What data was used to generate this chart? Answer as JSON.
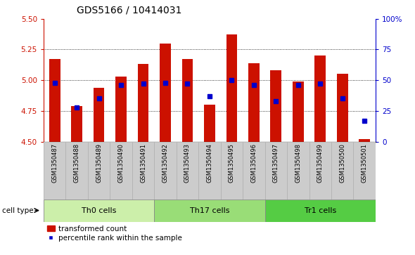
{
  "title": "GDS5166 / 10414031",
  "samples": [
    "GSM1350487",
    "GSM1350488",
    "GSM1350489",
    "GSM1350490",
    "GSM1350491",
    "GSM1350492",
    "GSM1350493",
    "GSM1350494",
    "GSM1350495",
    "GSM1350496",
    "GSM1350497",
    "GSM1350498",
    "GSM1350499",
    "GSM1350500",
    "GSM1350501"
  ],
  "transformed_count": [
    5.17,
    4.79,
    4.94,
    5.03,
    5.13,
    5.3,
    5.17,
    4.8,
    5.37,
    5.14,
    5.08,
    4.99,
    5.2,
    5.05,
    4.52
  ],
  "percentile_rank": [
    48,
    28,
    35,
    46,
    47,
    48,
    47,
    37,
    50,
    46,
    33,
    46,
    47,
    35,
    17
  ],
  "ymin": 4.5,
  "ymax": 5.5,
  "y_ticks": [
    4.5,
    4.75,
    5.0,
    5.25,
    5.5
  ],
  "right_axis_ticks": [
    0,
    25,
    50,
    75,
    100
  ],
  "cell_groups": [
    {
      "label": "Th0 cells",
      "start": 0,
      "end": 5,
      "color": "#ccefaa"
    },
    {
      "label": "Th17 cells",
      "start": 5,
      "end": 10,
      "color": "#99dd77"
    },
    {
      "label": "Tr1 cells",
      "start": 10,
      "end": 15,
      "color": "#55cc44"
    }
  ],
  "bar_color": "#cc1100",
  "dot_color": "#0000cc",
  "bar_bottom": 4.5,
  "legend_bar_label": "transformed count",
  "legend_dot_label": "percentile rank within the sample",
  "title_fontsize": 10,
  "tick_fontsize": 7.5,
  "cell_type_label": "cell type"
}
